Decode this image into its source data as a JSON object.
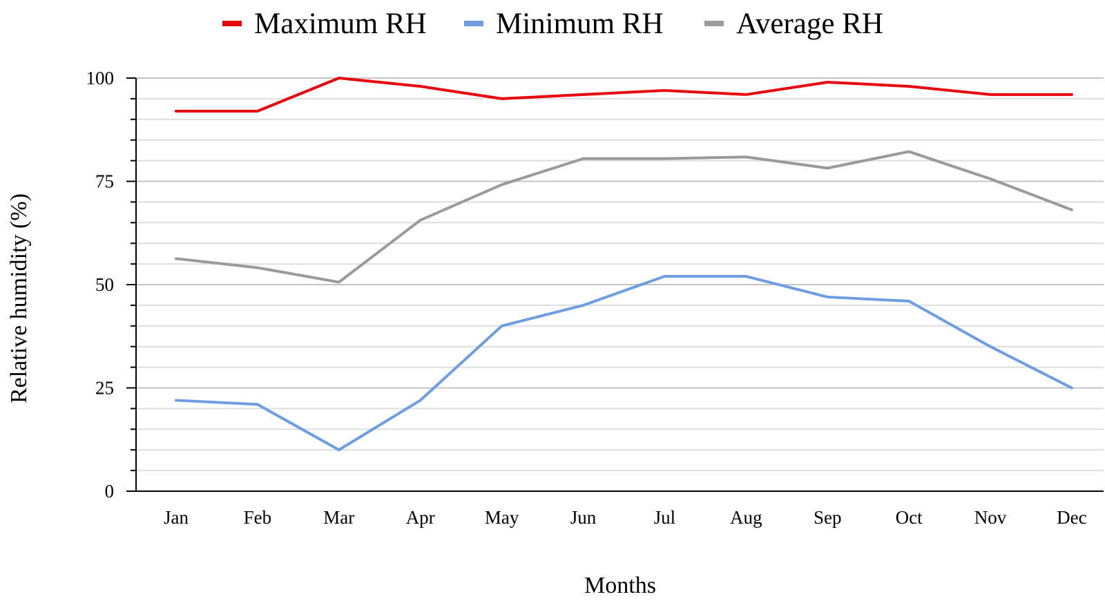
{
  "chart_data": {
    "type": "line",
    "title": "",
    "xlabel": "Months",
    "ylabel": "Relative humidity (%)",
    "categories": [
      "Jan",
      "Feb",
      "Mar",
      "Apr",
      "May",
      "Jun",
      "Jul",
      "Aug",
      "Sep",
      "Oct",
      "Nov",
      "Dec"
    ],
    "ylim": [
      0,
      100
    ],
    "yticks": [
      "0",
      "25",
      "50",
      "75",
      "100"
    ],
    "grid": true,
    "legend_position": "top",
    "series": [
      {
        "name": "Maximum RH",
        "color": "#e8000b",
        "values": [
          92,
          92,
          100,
          98,
          95,
          96,
          97,
          96,
          99,
          98,
          96,
          96
        ]
      },
      {
        "name": "Minimum RH",
        "color": "#6d9de2",
        "values": [
          22,
          21,
          10,
          22,
          40,
          45,
          52,
          52,
          47,
          46,
          35,
          25
        ]
      },
      {
        "name": "Average RH",
        "color": "#9a9a9a",
        "values": [
          56.3,
          54.1,
          50.6,
          65.6,
          74.2,
          80.5,
          80.5,
          80.9,
          78.2,
          82.2,
          75.6,
          68.1
        ]
      }
    ]
  }
}
